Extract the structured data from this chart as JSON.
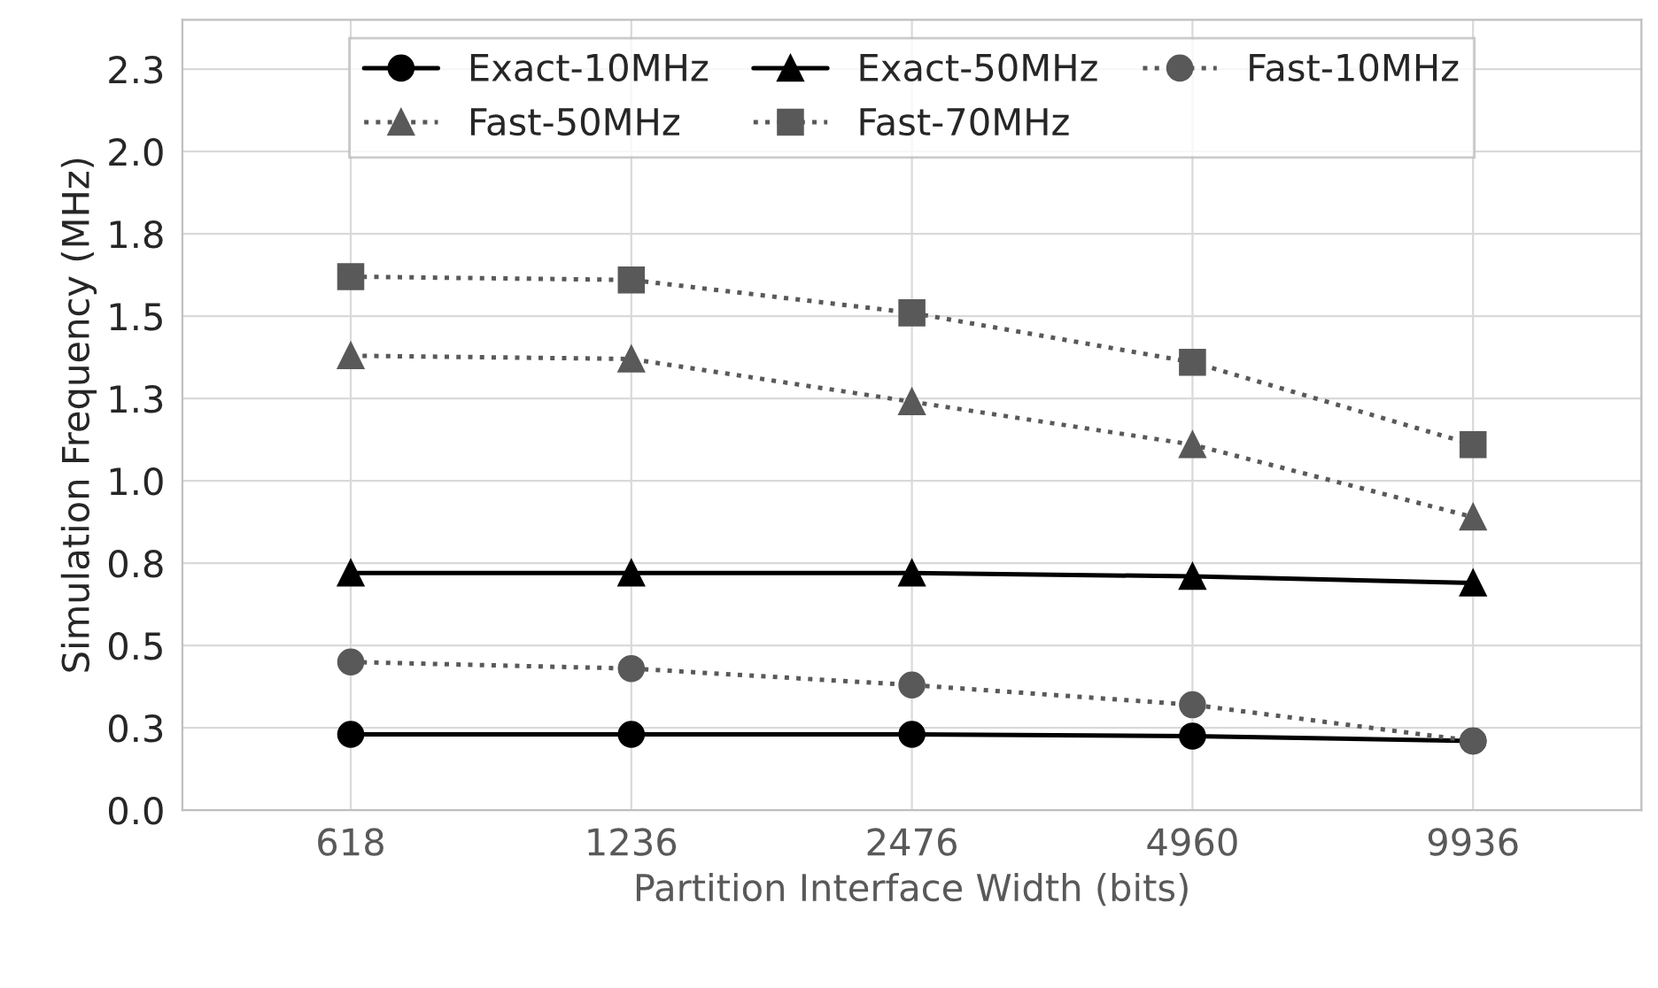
{
  "chart_data": {
    "type": "line",
    "xlabel": "Partition Interface Width (bits)",
    "ylabel": "Simulation Frequency (MHz)",
    "categories": [
      "618",
      "1236",
      "2476",
      "4960",
      "9936"
    ],
    "ylim": [
      0,
      2.4
    ],
    "yticks": [
      {
        "value": 0,
        "label": "0.0"
      },
      {
        "value": 0.25,
        "label": "0.3"
      },
      {
        "value": 0.5,
        "label": "0.5"
      },
      {
        "value": 0.75,
        "label": "0.8"
      },
      {
        "value": 1.0,
        "label": "1.0"
      },
      {
        "value": 1.25,
        "label": "1.3"
      },
      {
        "value": 1.5,
        "label": "1.5"
      },
      {
        "value": 1.75,
        "label": "1.8"
      },
      {
        "value": 2.0,
        "label": "2.0"
      },
      {
        "value": 2.25,
        "label": "2.3"
      }
    ],
    "grid": true,
    "legend": "top",
    "series": [
      {
        "name": "Exact-10MHz",
        "color": "#000000",
        "marker": "circle",
        "line_style": "solid",
        "values": [
          0.23,
          0.23,
          0.23,
          0.225,
          0.21
        ]
      },
      {
        "name": "Exact-50MHz",
        "color": "#000000",
        "marker": "triangle",
        "line_style": "solid",
        "values": [
          0.72,
          0.72,
          0.72,
          0.71,
          0.69
        ]
      },
      {
        "name": "Fast-10MHz",
        "color": "#595959",
        "marker": "circle",
        "line_style": "dotted",
        "values": [
          0.45,
          0.43,
          0.38,
          0.32,
          0.21
        ]
      },
      {
        "name": "Fast-50MHz",
        "color": "#595959",
        "marker": "triangle",
        "line_style": "dotted",
        "values": [
          1.38,
          1.37,
          1.24,
          1.11,
          0.89
        ]
      },
      {
        "name": "Fast-70MHz",
        "color": "#595959",
        "marker": "square",
        "line_style": "dotted",
        "values": [
          1.62,
          1.61,
          1.51,
          1.36,
          1.11
        ]
      }
    ]
  }
}
